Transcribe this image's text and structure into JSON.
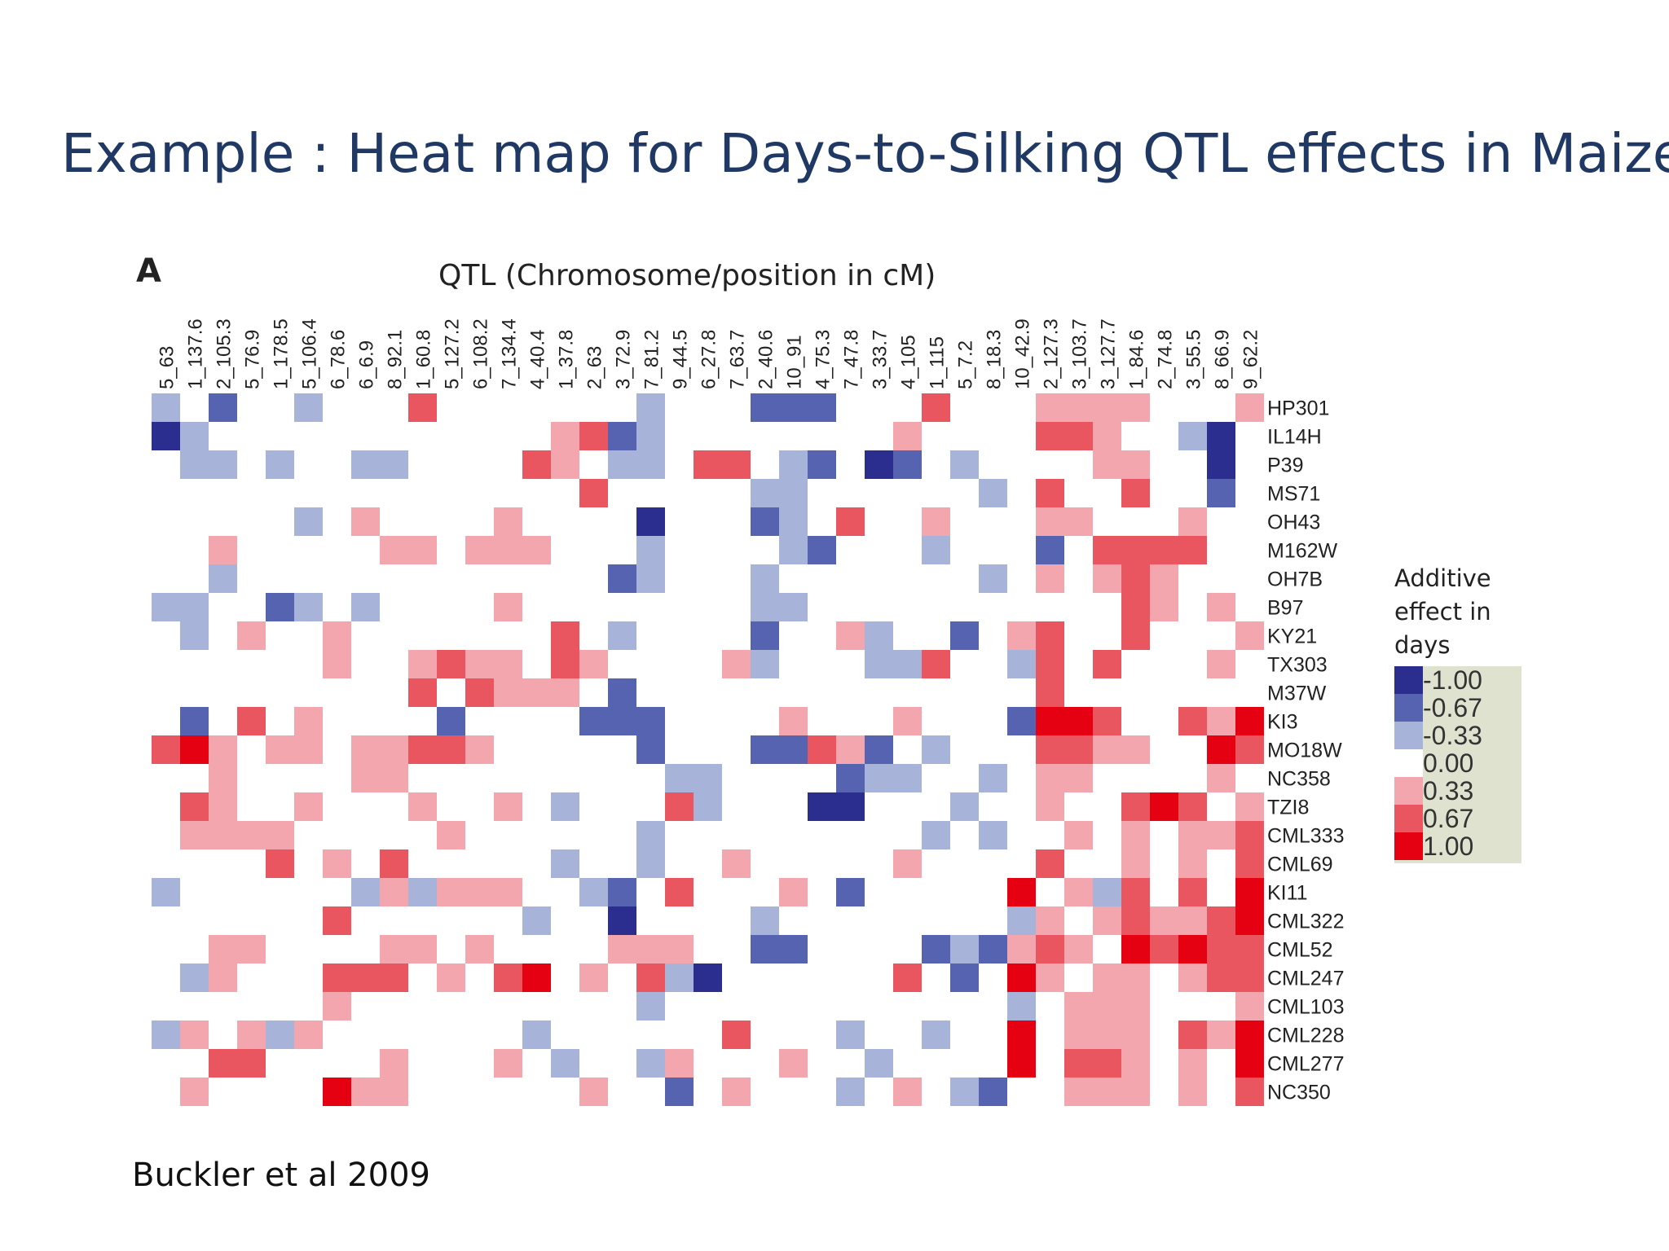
{
  "slide": {
    "title": "Example : Heat map for Days-to-Silking QTL effects in Maize",
    "panel_letter": "A",
    "citation": "Buckler et al 2009"
  },
  "legend": {
    "title": "Additive effect in days",
    "items": [
      {
        "label": "-1.00",
        "color": "#2b2e8f"
      },
      {
        "label": "-0.67",
        "color": "#5563b0"
      },
      {
        "label": "-0.33",
        "color": "#a8b3da"
      },
      {
        "label": "0.00",
        "color": "#ffffff"
      },
      {
        "label": "0.33",
        "color": "#f3a6ad"
      },
      {
        "label": "0.67",
        "color": "#e9565f"
      },
      {
        "label": "1.00",
        "color": "#e50012"
      }
    ]
  },
  "chart_data": {
    "type": "heatmap",
    "title": "QTL (Chromosome/position in cM)",
    "columns": [
      "5_63",
      "1_137.6",
      "2_105.3",
      "5_76.9",
      "1_178.5",
      "5_106.4",
      "6_78.6",
      "6_6.9",
      "8_92.1",
      "1_60.8",
      "5_127.2",
      "6_108.2",
      "7_134.4",
      "4_40.4",
      "1_37.8",
      "2_63",
      "3_72.9",
      "7_81.2",
      "9_44.5",
      "6_27.8",
      "7_63.7",
      "2_40.6",
      "10_91",
      "4_75.3",
      "7_47.8",
      "3_33.7",
      "4_105",
      "1_115",
      "5_7.2",
      "8_18.3",
      "10_42.9",
      "2_127.3",
      "3_103.7",
      "3_127.7",
      "1_84.6",
      "2_74.8",
      "3_55.5",
      "8_66.9",
      "9_62.2"
    ],
    "rows": [
      "HP301",
      "IL14H",
      "P39",
      "MS71",
      "OH43",
      "M162W",
      "OH7B",
      "B97",
      "KY21",
      "TX303",
      "M37W",
      "KI3",
      "MO18W",
      "NC358",
      "TZI8",
      "CML333",
      "CML69",
      "KI11",
      "CML322",
      "CML52",
      "CML247",
      "CML103",
      "CML228",
      "CML277",
      "NC350"
    ],
    "value_levels": [
      -1.0,
      -0.67,
      -0.33,
      0.0,
      0.33,
      0.67,
      1.0
    ],
    "values": [
      [
        -0.33,
        0,
        -0.67,
        0,
        0,
        -0.33,
        0,
        0,
        0,
        0.67,
        0,
        0,
        0,
        0,
        0,
        0,
        0,
        -0.33,
        0,
        0,
        0,
        -0.67,
        -0.67,
        -0.67,
        0,
        0,
        0,
        0.67,
        0,
        0,
        0,
        0.33,
        0.33,
        0.33,
        0.33,
        0,
        0,
        0,
        0.33
      ],
      [
        -1,
        -0.33,
        0,
        0,
        0,
        0,
        0,
        0,
        0,
        0,
        0,
        0,
        0,
        0,
        0.33,
        0.67,
        -0.67,
        -0.33,
        0,
        0,
        0,
        0,
        0,
        0,
        0,
        0,
        0.33,
        0,
        0,
        0,
        0,
        0.67,
        0.67,
        0.33,
        0,
        0,
        -0.33,
        -1,
        0
      ],
      [
        0,
        -0.33,
        -0.33,
        0,
        -0.33,
        0,
        0,
        -0.33,
        -0.33,
        0,
        0,
        0,
        0,
        0.67,
        0.33,
        0,
        -0.33,
        -0.33,
        0,
        0.67,
        0.67,
        0,
        -0.33,
        -0.67,
        0,
        -1,
        -0.67,
        0,
        -0.33,
        0,
        0,
        0,
        0,
        0.33,
        0.33,
        0,
        0,
        -1,
        0
      ],
      [
        0,
        0,
        0,
        0,
        0,
        0,
        0,
        0,
        0,
        0,
        0,
        0,
        0,
        0,
        0,
        0.67,
        0,
        0,
        0,
        0,
        0,
        -0.33,
        -0.33,
        0,
        0,
        0,
        0,
        0,
        0,
        -0.33,
        0,
        0.67,
        0,
        0,
        0.67,
        0,
        0,
        -0.67,
        0
      ],
      [
        0,
        0,
        0,
        0,
        0,
        -0.33,
        0,
        0.33,
        0,
        0,
        0,
        0,
        0.33,
        0,
        0,
        0,
        0,
        -1,
        0,
        0,
        0,
        -0.67,
        -0.33,
        0,
        0.67,
        0,
        0,
        0.33,
        0,
        0,
        0,
        0.33,
        0.33,
        0,
        0,
        0,
        0.33,
        0,
        0
      ],
      [
        0,
        0,
        0.33,
        0,
        0,
        0,
        0,
        0,
        0.33,
        0.33,
        0,
        0.33,
        0.33,
        0.33,
        0,
        0,
        0,
        -0.33,
        0,
        0,
        0,
        0,
        -0.33,
        -0.67,
        0,
        0,
        0,
        -0.33,
        0,
        0,
        0,
        -0.67,
        0,
        0.67,
        0.67,
        0.67,
        0.67,
        0,
        0
      ],
      [
        0,
        0,
        -0.33,
        0,
        0,
        0,
        0,
        0,
        0,
        0,
        0,
        0,
        0,
        0,
        0,
        0,
        -0.67,
        -0.33,
        0,
        0,
        0,
        -0.33,
        0,
        0,
        0,
        0,
        0,
        0,
        0,
        -0.33,
        0,
        0.33,
        0,
        0.33,
        0.67,
        0.33,
        0,
        0,
        0
      ],
      [
        -0.33,
        -0.33,
        0,
        0,
        -0.67,
        -0.33,
        0,
        -0.33,
        0,
        0,
        0,
        0,
        0.33,
        0,
        0,
        0,
        0,
        0,
        0,
        0,
        0,
        -0.33,
        -0.33,
        0,
        0,
        0,
        0,
        0,
        0,
        0,
        0,
        0,
        0,
        0,
        0.67,
        0.33,
        0,
        0.33,
        0
      ],
      [
        0,
        -0.33,
        0,
        0.33,
        0,
        0,
        0.33,
        0,
        0,
        0,
        0,
        0,
        0,
        0,
        0.67,
        0,
        -0.33,
        0,
        0,
        0,
        0,
        -0.67,
        0,
        0,
        0.33,
        -0.33,
        0,
        0,
        -0.67,
        0,
        0.33,
        0.67,
        0,
        0,
        0.67,
        0,
        0,
        0,
        0.33
      ],
      [
        0,
        0,
        0,
        0,
        0,
        0,
        0.33,
        0,
        0,
        0.33,
        0.67,
        0.33,
        0.33,
        0,
        0.67,
        0.33,
        0,
        0,
        0,
        0,
        0.33,
        -0.33,
        0,
        0,
        0,
        -0.33,
        -0.33,
        0.67,
        0,
        0,
        -0.33,
        0.67,
        0,
        0.67,
        0,
        0,
        0,
        0.33,
        0
      ],
      [
        0,
        0,
        0,
        0,
        0,
        0,
        0,
        0,
        0,
        0.67,
        0,
        0.67,
        0.33,
        0.33,
        0.33,
        0,
        -0.67,
        0,
        0,
        0,
        0,
        0,
        0,
        0,
        0,
        0,
        0,
        0,
        0,
        0,
        0,
        0.67,
        0,
        0,
        0,
        0,
        0,
        0,
        0
      ],
      [
        0,
        -0.67,
        0,
        0.67,
        0,
        0.33,
        0,
        0,
        0,
        0,
        -0.67,
        0,
        0,
        0,
        0,
        -0.67,
        -0.67,
        -0.67,
        0,
        0,
        0,
        0,
        0.33,
        0,
        0,
        0,
        0.33,
        0,
        0,
        0,
        -0.67,
        1,
        1,
        0.67,
        0,
        0,
        0.67,
        0.33,
        1
      ],
      [
        0.67,
        1,
        0.33,
        0,
        0.33,
        0.33,
        0,
        0.33,
        0.33,
        0.67,
        0.67,
        0.33,
        0,
        0,
        0,
        0,
        0,
        -0.67,
        0,
        0,
        0,
        -0.67,
        -0.67,
        0.67,
        0.33,
        -0.67,
        0,
        -0.33,
        0,
        0,
        0,
        0.67,
        0.67,
        0.33,
        0.33,
        0,
        0,
        1,
        0.67
      ],
      [
        0,
        0,
        0.33,
        0,
        0,
        0,
        0,
        0.33,
        0.33,
        0,
        0,
        0,
        0,
        0,
        0,
        0,
        0,
        0,
        -0.33,
        -0.33,
        0,
        0,
        0,
        0,
        -0.67,
        -0.33,
        -0.33,
        0,
        0,
        -0.33,
        0,
        0.33,
        0.33,
        0,
        0,
        0,
        0,
        0.33,
        0
      ],
      [
        0,
        0.67,
        0.33,
        0,
        0,
        0.33,
        0,
        0,
        0,
        0.33,
        0,
        0,
        0.33,
        0,
        -0.33,
        0,
        0,
        0,
        0.67,
        -0.33,
        0,
        0,
        0,
        -1,
        -1,
        0,
        0,
        0,
        -0.33,
        0,
        0,
        0.33,
        0,
        0,
        0.67,
        1,
        0.67,
        0,
        0.33
      ],
      [
        0,
        0.33,
        0.33,
        0.33,
        0.33,
        0,
        0,
        0,
        0,
        0,
        0.33,
        0,
        0,
        0,
        0,
        0,
        0,
        -0.33,
        0,
        0,
        0,
        0,
        0,
        0,
        0,
        0,
        0,
        -0.33,
        0,
        -0.33,
        0,
        0,
        0.33,
        0,
        0.33,
        0,
        0.33,
        0.33,
        0.67
      ],
      [
        0,
        0,
        0,
        0,
        0.67,
        0,
        0.33,
        0,
        0.67,
        0,
        0,
        0,
        0,
        0,
        -0.33,
        0,
        0,
        -0.33,
        0,
        0,
        0.33,
        0,
        0,
        0,
        0,
        0,
        0.33,
        0,
        0,
        0,
        0,
        0.67,
        0,
        0,
        0.33,
        0,
        0.33,
        0,
        0.67
      ],
      [
        -0.33,
        0,
        0,
        0,
        0,
        0,
        0,
        -0.33,
        0.33,
        -0.33,
        0.33,
        0.33,
        0.33,
        0,
        0,
        -0.33,
        -0.67,
        0,
        0.67,
        0,
        0,
        0,
        0.33,
        0,
        -0.67,
        0,
        0,
        0,
        0,
        0,
        1,
        0,
        0.33,
        -0.33,
        0.67,
        0,
        0.67,
        0,
        1
      ],
      [
        0,
        0,
        0,
        0,
        0,
        0,
        0.67,
        0,
        0,
        0,
        0,
        0,
        0,
        -0.33,
        0,
        0,
        -1,
        0,
        0,
        0,
        0,
        -0.33,
        0,
        0,
        0,
        0,
        0,
        0,
        0,
        0,
        -0.33,
        0.33,
        0,
        0.33,
        0.67,
        0.33,
        0.33,
        0.67,
        1
      ],
      [
        0,
        0,
        0.33,
        0.33,
        0,
        0,
        0,
        0,
        0.33,
        0.33,
        0,
        0.33,
        0,
        0,
        0,
        0,
        0.33,
        0.33,
        0.33,
        0,
        0,
        -0.67,
        -0.67,
        0,
        0,
        0,
        0,
        -0.67,
        -0.33,
        -0.67,
        0.33,
        0.67,
        0.33,
        0,
        1,
        0.67,
        1,
        0.67,
        0.67
      ],
      [
        0,
        -0.33,
        0.33,
        0,
        0,
        0,
        0.67,
        0.67,
        0.67,
        0,
        0.33,
        0,
        0.67,
        1,
        0,
        0.33,
        0,
        0.67,
        -0.33,
        -1,
        0,
        0,
        0,
        0,
        0,
        0,
        0.67,
        0,
        -0.67,
        0,
        1,
        0.33,
        0,
        0.33,
        0.33,
        0,
        0.33,
        0.67,
        0.67
      ],
      [
        0,
        0,
        0,
        0,
        0,
        0,
        0.33,
        0,
        0,
        0,
        0,
        0,
        0,
        0,
        0,
        0,
        0,
        -0.33,
        0,
        0,
        0,
        0,
        0,
        0,
        0,
        0,
        0,
        0,
        0,
        0,
        -0.33,
        0,
        0.33,
        0.33,
        0.33,
        0,
        0,
        0,
        0.33
      ],
      [
        -0.33,
        0.33,
        0,
        0.33,
        -0.33,
        0.33,
        0,
        0,
        0,
        0,
        0,
        0,
        0,
        -0.33,
        0,
        0,
        0,
        0,
        0,
        0,
        0.67,
        0,
        0,
        0,
        -0.33,
        0,
        0,
        -0.33,
        0,
        0,
        1,
        0,
        0.33,
        0.33,
        0.33,
        0,
        0.67,
        0.33,
        1
      ],
      [
        0,
        0,
        0.67,
        0.67,
        0,
        0,
        0,
        0,
        0.33,
        0,
        0,
        0,
        0.33,
        0,
        -0.33,
        0,
        0,
        -0.33,
        0.33,
        0,
        0,
        0,
        0.33,
        0,
        0,
        -0.33,
        0,
        0,
        0,
        0,
        1,
        0,
        0.67,
        0.67,
        0.33,
        0,
        0.33,
        0,
        1
      ],
      [
        0,
        0.33,
        0,
        0,
        0,
        0,
        1,
        0.33,
        0.33,
        0,
        0,
        0,
        0,
        0,
        0,
        0.33,
        0,
        0,
        -0.67,
        0,
        0.33,
        0,
        0,
        0,
        -0.33,
        0,
        0.33,
        0,
        -0.33,
        -0.67,
        0,
        0,
        0.33,
        0.33,
        0.33,
        0,
        0.33,
        0,
        0.67
      ]
    ]
  }
}
